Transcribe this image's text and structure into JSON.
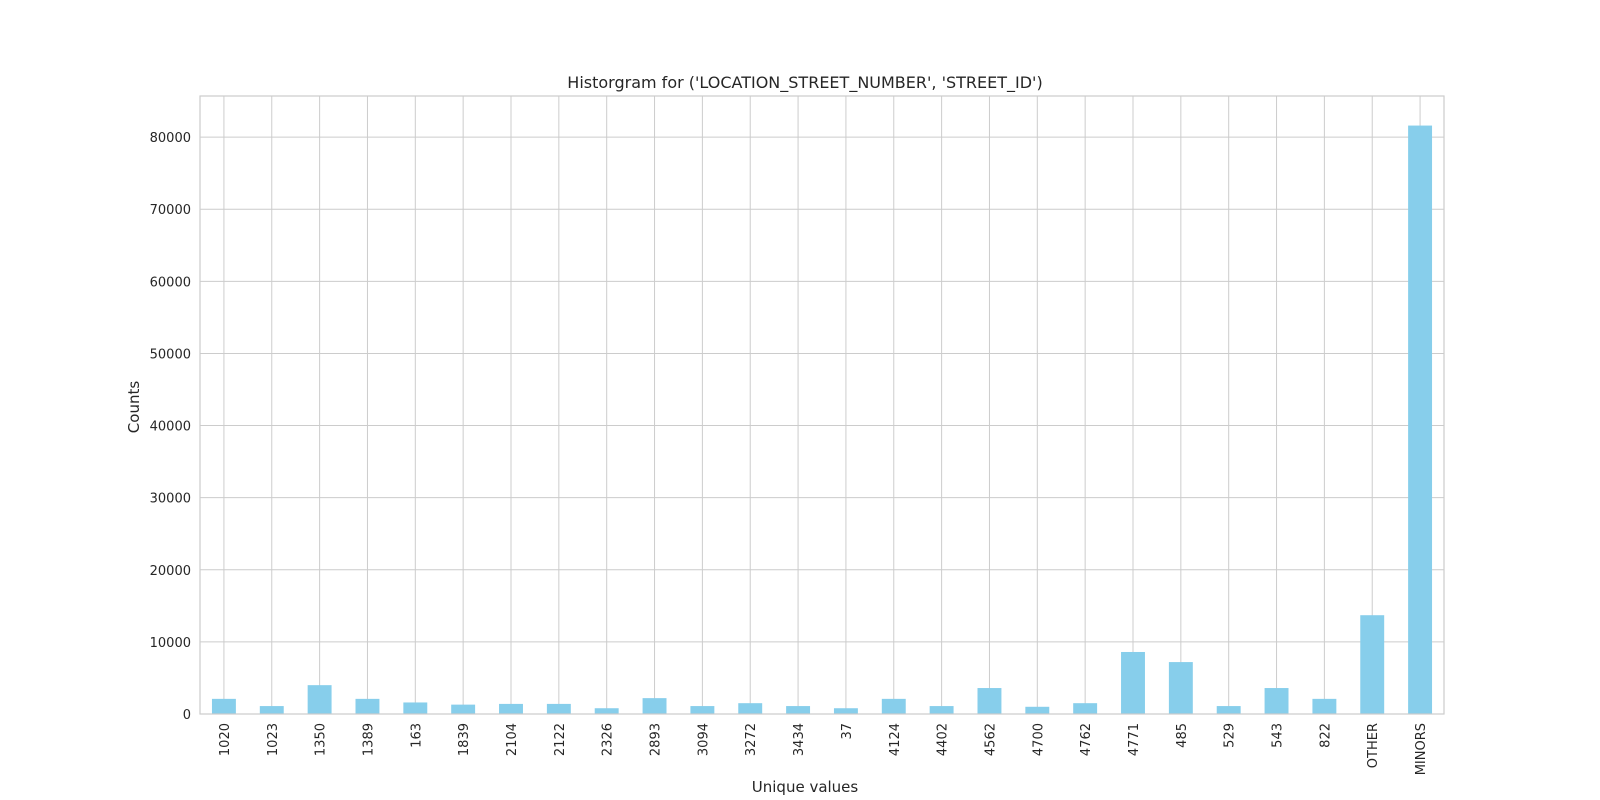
{
  "chart_data": {
    "type": "bar",
    "title": "Historgram for ('LOCATION_STREET_NUMBER', 'STREET_ID')",
    "xlabel": "Unique values",
    "ylabel": "Counts",
    "categories": [
      "1020",
      "1023",
      "1350",
      "1389",
      "163",
      "1839",
      "2104",
      "2122",
      "2326",
      "2893",
      "3094",
      "3272",
      "3434",
      "37",
      "4124",
      "4402",
      "4562",
      "4700",
      "4762",
      "4771",
      "485",
      "529",
      "543",
      "822",
      "OTHER",
      "MINORS"
    ],
    "values": [
      2100,
      1100,
      4000,
      2100,
      1600,
      1300,
      1400,
      1400,
      800,
      2200,
      1100,
      1500,
      1100,
      800,
      2100,
      1100,
      3600,
      1000,
      1500,
      8600,
      7200,
      1100,
      3600,
      2100,
      13700,
      81600
    ],
    "ylim": [
      0,
      85700
    ],
    "yticks": [
      0,
      10000,
      20000,
      30000,
      40000,
      50000,
      60000,
      70000,
      80000
    ],
    "grid": true,
    "bar_color": "#87ceeb",
    "grid_color": "#cccccc"
  }
}
